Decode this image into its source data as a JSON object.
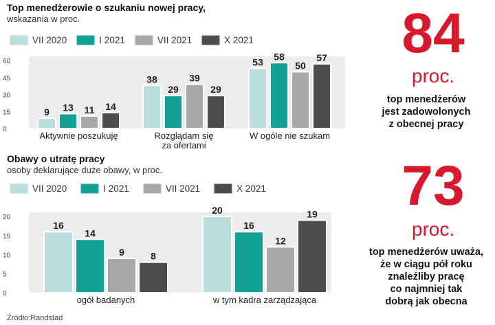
{
  "chart_data": [
    {
      "type": "bar",
      "title": "Top menedżerowie o szukaniu nowej pracy,",
      "subtitle": "wskazania w proc.",
      "categories": [
        "Aktywnie poszukuję",
        "Rozglądam się\nza ofertami",
        "W ogóle nie szukam"
      ],
      "series": [
        {
          "name": "VII 2020",
          "values": [
            9,
            38,
            53
          ]
        },
        {
          "name": "I 2021",
          "values": [
            13,
            29,
            58
          ]
        },
        {
          "name": "VII 2021",
          "values": [
            11,
            39,
            50
          ]
        },
        {
          "name": "X 2021",
          "values": [
            14,
            29,
            57
          ]
        }
      ],
      "yticks": [
        0,
        15,
        30,
        45,
        60
      ],
      "ylim": [
        0,
        60
      ],
      "grid": false,
      "legend": "top"
    },
    {
      "type": "bar",
      "title": "Obawy o utratę pracy",
      "subtitle": "osoby deklarujące duże obawy, w proc.",
      "categories": [
        "ogół badanych",
        "w tym kadra zarządzająca"
      ],
      "series": [
        {
          "name": "VII 2020",
          "values": [
            16,
            20
          ]
        },
        {
          "name": "I 2021",
          "values": [
            14,
            16
          ]
        },
        {
          "name": "VII 2021",
          "values": [
            9,
            12
          ]
        },
        {
          "name": "X 2021",
          "values": [
            8,
            19
          ]
        }
      ],
      "yticks": [
        0,
        5,
        10,
        15,
        20
      ],
      "ylim": [
        0,
        20
      ],
      "grid": false,
      "legend": "top"
    }
  ],
  "colors": {
    "series": [
      "#b9dedd",
      "#12a295",
      "#a8a8a9",
      "#4d4d4f"
    ],
    "panel": "#ececec",
    "accent": "#d7192e"
  },
  "highlights": [
    {
      "number": "84",
      "unit": "proc.",
      "text": "top menedżerów\njest zadowolonych\nz obecnej pracy"
    },
    {
      "number": "73",
      "unit": "proc.",
      "text": "top menedżerów uważa,\nże w ciągu pół roku\nznaleźliby pracę\nco najmniej tak\ndobrą jak obecna"
    }
  ],
  "source": "Źródło:Randstad"
}
